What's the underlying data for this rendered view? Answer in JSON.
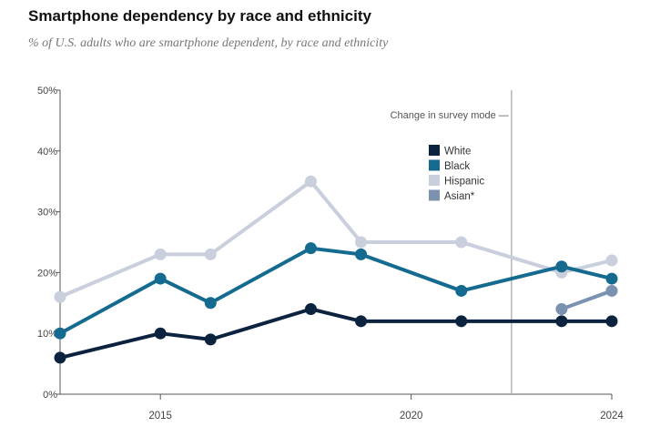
{
  "title": "Smartphone dependency by race and ethnicity",
  "subtitle": "% of U.S. adults who are smartphone dependent, by race and ethnicity",
  "annotation": "Change in survey mode",
  "colors": {
    "White": "#0c2340",
    "Black": "#146a8f",
    "Hispanic": "#c9cfdc",
    "Asian*": "#7b91b0",
    "axis": "#555555",
    "divider": "#b5b5b5"
  },
  "chart_data": {
    "type": "line",
    "title": "Smartphone dependency by race and ethnicity",
    "subtitle": "% of U.S. adults who are smartphone dependent, by race and ethnicity",
    "xlabel": "",
    "ylabel": "",
    "xlim": [
      2013,
      2024
    ],
    "ylim": [
      0,
      50
    ],
    "x_ticks": [
      2015,
      2020,
      2024
    ],
    "x_tick_labels": [
      "2015",
      "2020",
      "2024"
    ],
    "y_ticks": [
      0,
      10,
      20,
      30,
      40,
      50
    ],
    "y_tick_labels": [
      "0%",
      "10%",
      "20%",
      "30%",
      "40%",
      "50%"
    ],
    "grid": false,
    "legend_position": "top-right",
    "survey_mode_change_year": 2022,
    "series": [
      {
        "name": "White",
        "x": [
          2013,
          2015,
          2016,
          2018,
          2019,
          2021,
          2023,
          2024
        ],
        "values": [
          6,
          10,
          9,
          14,
          12,
          12,
          12,
          12
        ]
      },
      {
        "name": "Black",
        "x": [
          2013,
          2015,
          2016,
          2018,
          2019,
          2021,
          2023,
          2024
        ],
        "values": [
          10,
          19,
          15,
          24,
          23,
          17,
          21,
          19
        ]
      },
      {
        "name": "Hispanic",
        "x": [
          2013,
          2015,
          2016,
          2018,
          2019,
          2021,
          2023,
          2024
        ],
        "values": [
          16,
          23,
          23,
          35,
          25,
          25,
          20,
          22
        ]
      },
      {
        "name": "Asian*",
        "x": [
          2023,
          2024
        ],
        "values": [
          14,
          17
        ]
      }
    ]
  }
}
